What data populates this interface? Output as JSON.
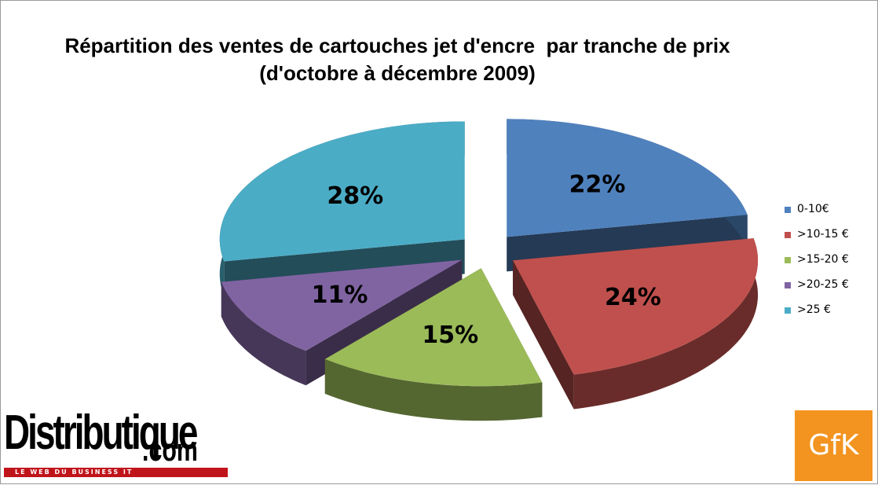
{
  "chart_data": {
    "type": "pie",
    "title_lines": [
      "Répartition des ventes de cartouches jet d'encre  par tranche de prix",
      "(d'octobre à décembre 2009)"
    ],
    "unit": "%",
    "categories": [
      "0-10€",
      ">10-15 €",
      ">15-20 €",
      ">20-25 €",
      ">25 €"
    ],
    "values": [
      22,
      24,
      15,
      11,
      28
    ],
    "labels": [
      "22%",
      "24%",
      "15%",
      "11%",
      "28%"
    ],
    "colors": [
      "#4f81bd",
      "#c0504d",
      "#9bbb59",
      "#8064a2",
      "#4bacc6"
    ],
    "style": "3d-exploded",
    "legend_position": "right"
  },
  "logos": {
    "distributique": {
      "name": "Distributique",
      "tld": ".com",
      "tagline": "LE WEB DU BUSINESS IT"
    },
    "gfk": {
      "name": "GfK",
      "color": "#f39420"
    }
  }
}
